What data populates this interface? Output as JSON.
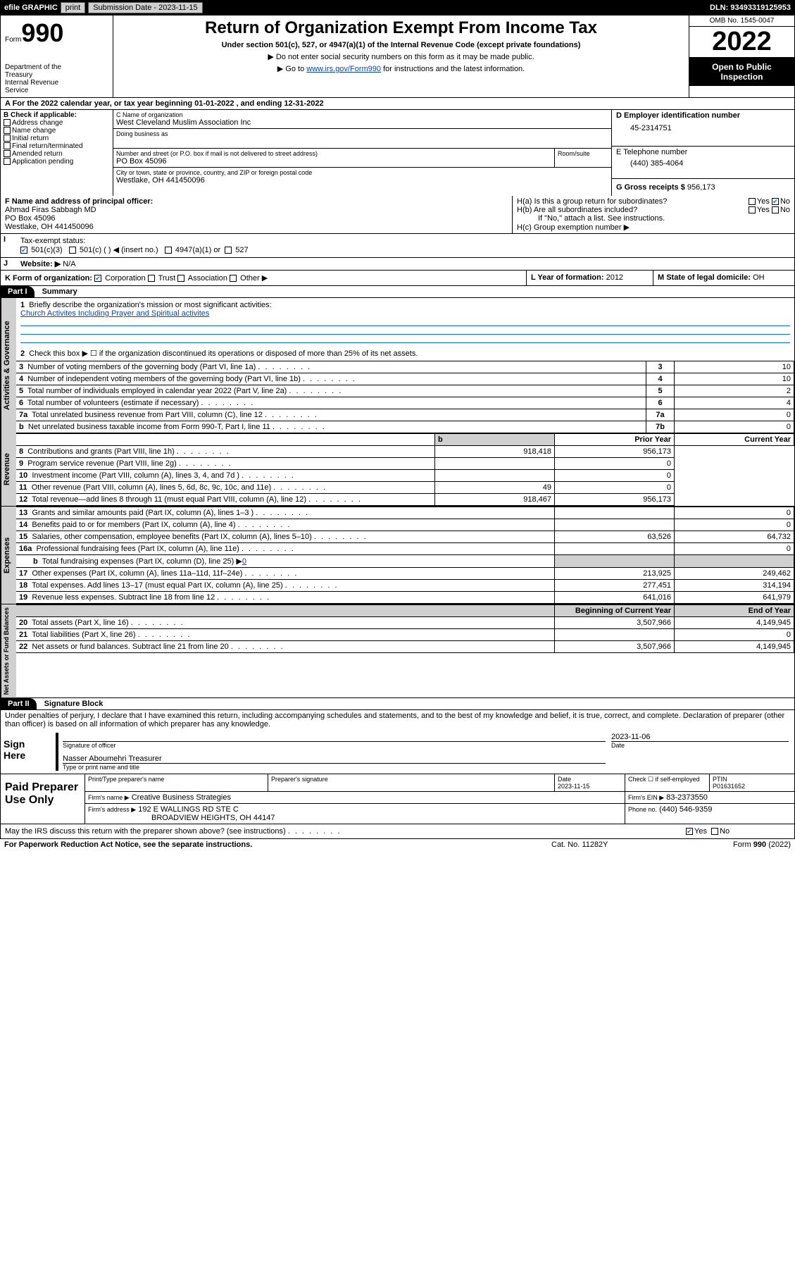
{
  "topbar": {
    "efile": "efile GRAPHIC",
    "print": "print",
    "submission_label": "Submission Date - 2023-11-15",
    "dln": "DLN: 93493319125953"
  },
  "header": {
    "form_label": "Form",
    "form_no": "990",
    "dept": "Department of the Treasury\nInternal Revenue Service",
    "title": "Return of Organization Exempt From Income Tax",
    "sub": "Under section 501(c), 527, or 4947(a)(1) of the Internal Revenue Code (except private foundations)",
    "note1": "▶ Do not enter social security numbers on this form as it may be made public.",
    "note2_pre": "▶ Go to ",
    "note2_link": "www.irs.gov/Form990",
    "note2_post": " for instructions and the latest information.",
    "omb": "OMB No. 1545-0047",
    "year": "2022",
    "inspect": "Open to Public Inspection"
  },
  "lineA": "A For the 2022 calendar year, or tax year beginning 01-01-2022   , and ending 12-31-2022",
  "B": {
    "label": "B Check if applicable:",
    "items": [
      "Address change",
      "Name change",
      "Initial return",
      "Final return/terminated",
      "Amended return",
      "Application pending"
    ]
  },
  "C": {
    "name_lbl": "C Name of organization",
    "name": "West Cleveland Muslim Association Inc",
    "dba_lbl": "Doing business as",
    "street_lbl": "Number and street (or P.O. box if mail is not delivered to street address)",
    "room_lbl": "Room/suite",
    "street": "PO Box 45096",
    "city_lbl": "City or town, state or province, country, and ZIP or foreign postal code",
    "city": "Westlake, OH  441450096"
  },
  "D": {
    "label": "D Employer identification number",
    "value": "45-2314751"
  },
  "E": {
    "label": "E Telephone number",
    "value": "(440) 385-4064"
  },
  "G": {
    "label": "G Gross receipts $",
    "value": "956,173"
  },
  "F": {
    "label": "F Name and address of principal officer:",
    "line1": "Ahmad Firas Sabbagh MD",
    "line2": "PO Box 45096",
    "line3": "Westlake, OH  441450096"
  },
  "H": {
    "a": "H(a)  Is this a group return for subordinates?",
    "a_yes": "Yes",
    "a_no": "No",
    "b": "H(b)  Are all subordinates included?",
    "b_yes": "Yes",
    "b_no": "No",
    "b_note": "If \"No,\" attach a list. See instructions.",
    "c": "H(c)  Group exemption number ▶"
  },
  "I": {
    "label": "I",
    "text": "Tax-exempt status:",
    "c3": "501(c)(3)",
    "c": "501(c) (  ) ◀ (insert no.)",
    "a1": "4947(a)(1) or",
    "s527": "527"
  },
  "J": {
    "label": "J",
    "text": "Website: ▶",
    "value": "N/A"
  },
  "K": {
    "label": "K Form of organization:",
    "corp": "Corporation",
    "trust": "Trust",
    "assoc": "Association",
    "other": "Other ▶"
  },
  "L": {
    "label": "L Year of formation:",
    "value": "2012"
  },
  "M": {
    "label": "M State of legal domicile:",
    "value": "OH"
  },
  "part1": {
    "hdr": "Part I",
    "title": "Summary",
    "l1": "Briefly describe the organization's mission or most significant activities:",
    "l1_text": "Church Activites Including Prayer and Spiritual activites",
    "l2": "Check this box ▶ ☐  if the organization discontinued its operations or disposed of more than 25% of its net assets.",
    "rows": [
      {
        "n": "3",
        "t": "Number of voting members of the governing body (Part VI, line 1a)",
        "box": "3",
        "v": "10"
      },
      {
        "n": "4",
        "t": "Number of independent voting members of the governing body (Part VI, line 1b)",
        "box": "4",
        "v": "10"
      },
      {
        "n": "5",
        "t": "Total number of individuals employed in calendar year 2022 (Part V, line 2a)",
        "box": "5",
        "v": "2"
      },
      {
        "n": "6",
        "t": "Total number of volunteers (estimate if necessary)",
        "box": "6",
        "v": "4"
      },
      {
        "n": "7a",
        "t": "Total unrelated business revenue from Part VIII, column (C), line 12",
        "box": "7a",
        "v": "0"
      },
      {
        "n": "b",
        "t": "Net unrelated business taxable income from Form 990-T, Part I, line 11",
        "box": "7b",
        "v": "0"
      }
    ],
    "prior": "Prior Year",
    "current": "Current Year",
    "rev_label": "Revenue",
    "rev_rows": [
      {
        "n": "8",
        "t": "Contributions and grants (Part VIII, line 1h)",
        "p": "918,418",
        "c": "956,173"
      },
      {
        "n": "9",
        "t": "Program service revenue (Part VIII, line 2g)",
        "p": "",
        "c": "0"
      },
      {
        "n": "10",
        "t": "Investment income (Part VIII, column (A), lines 3, 4, and 7d )",
        "p": "",
        "c": "0"
      },
      {
        "n": "11",
        "t": "Other revenue (Part VIII, column (A), lines 5, 6d, 8c, 9c, 10c, and 11e)",
        "p": "49",
        "c": "0"
      },
      {
        "n": "12",
        "t": "Total revenue—add lines 8 through 11 (must equal Part VIII, column (A), line 12)",
        "p": "918,467",
        "c": "956,173"
      }
    ],
    "exp_label": "Expenses",
    "exp_rows": [
      {
        "n": "13",
        "t": "Grants and similar amounts paid (Part IX, column (A), lines 1–3 )",
        "p": "",
        "c": "0"
      },
      {
        "n": "14",
        "t": "Benefits paid to or for members (Part IX, column (A), line 4)",
        "p": "",
        "c": "0"
      },
      {
        "n": "15",
        "t": "Salaries, other compensation, employee benefits (Part IX, column (A), lines 5–10)",
        "p": "63,526",
        "c": "64,732"
      },
      {
        "n": "16a",
        "t": "Professional fundraising fees (Part IX, column (A), line 11e)",
        "p": "",
        "c": "0"
      }
    ],
    "l16b": "Total fundraising expenses (Part IX, column (D), line 25) ▶",
    "l16b_val": "0",
    "exp_rows2": [
      {
        "n": "17",
        "t": "Other expenses (Part IX, column (A), lines 11a–11d, 11f–24e)",
        "p": "213,925",
        "c": "249,462"
      },
      {
        "n": "18",
        "t": "Total expenses. Add lines 13–17 (must equal Part IX, column (A), line 25)",
        "p": "277,451",
        "c": "314,194"
      },
      {
        "n": "19",
        "t": "Revenue less expenses. Subtract line 18 from line 12",
        "p": "641,016",
        "c": "641,979"
      }
    ],
    "net_label": "Net Assets or Fund Balances",
    "begin": "Beginning of Current Year",
    "end": "End of Year",
    "net_rows": [
      {
        "n": "20",
        "t": "Total assets (Part X, line 16)",
        "p": "3,507,966",
        "c": "4,149,945"
      },
      {
        "n": "21",
        "t": "Total liabilities (Part X, line 26)",
        "p": "",
        "c": "0"
      },
      {
        "n": "22",
        "t": "Net assets or fund balances. Subtract line 21 from line 20",
        "p": "3,507,966",
        "c": "4,149,945"
      }
    ]
  },
  "part2": {
    "hdr": "Part II",
    "title": "Signature Block",
    "decl": "Under penalties of perjury, I declare that I have examined this return, including accompanying schedules and statements, and to the best of my knowledge and belief, it is true, correct, and complete. Declaration of preparer (other than officer) is based on all information of which preparer has any knowledge.",
    "sign_here": "Sign Here",
    "sig_officer": "Signature of officer",
    "sig_date": "2023-11-06",
    "date_lbl": "Date",
    "officer_name": "Nasser Aboumehri Treasurer",
    "type_name": "Type or print name and title",
    "paid": "Paid Preparer Use Only",
    "col_name": "Print/Type preparer's name",
    "col_sig": "Preparer's signature",
    "col_date": "Date",
    "prep_date": "2023-11-15",
    "check_self": "Check ☐ if self-employed",
    "ptin_lbl": "PTIN",
    "ptin": "P01631652",
    "firm_name_lbl": "Firm's name    ▶",
    "firm_name": "Creative Business Strategies",
    "firm_ein_lbl": "Firm's EIN ▶",
    "firm_ein": "83-2373550",
    "firm_addr_lbl": "Firm's address ▶",
    "firm_addr1": "192 E WALLINGS RD STE C",
    "firm_addr2": "BROADVIEW HEIGHTS, OH  44147",
    "phone_lbl": "Phone no.",
    "phone": "(440) 546-9359",
    "discuss": "May the IRS discuss this return with the preparer shown above? (see instructions)",
    "yes": "Yes",
    "no": "No"
  },
  "footer": {
    "pra": "For Paperwork Reduction Act Notice, see the separate instructions.",
    "cat": "Cat. No. 11282Y",
    "form": "Form 990 (2022)"
  }
}
